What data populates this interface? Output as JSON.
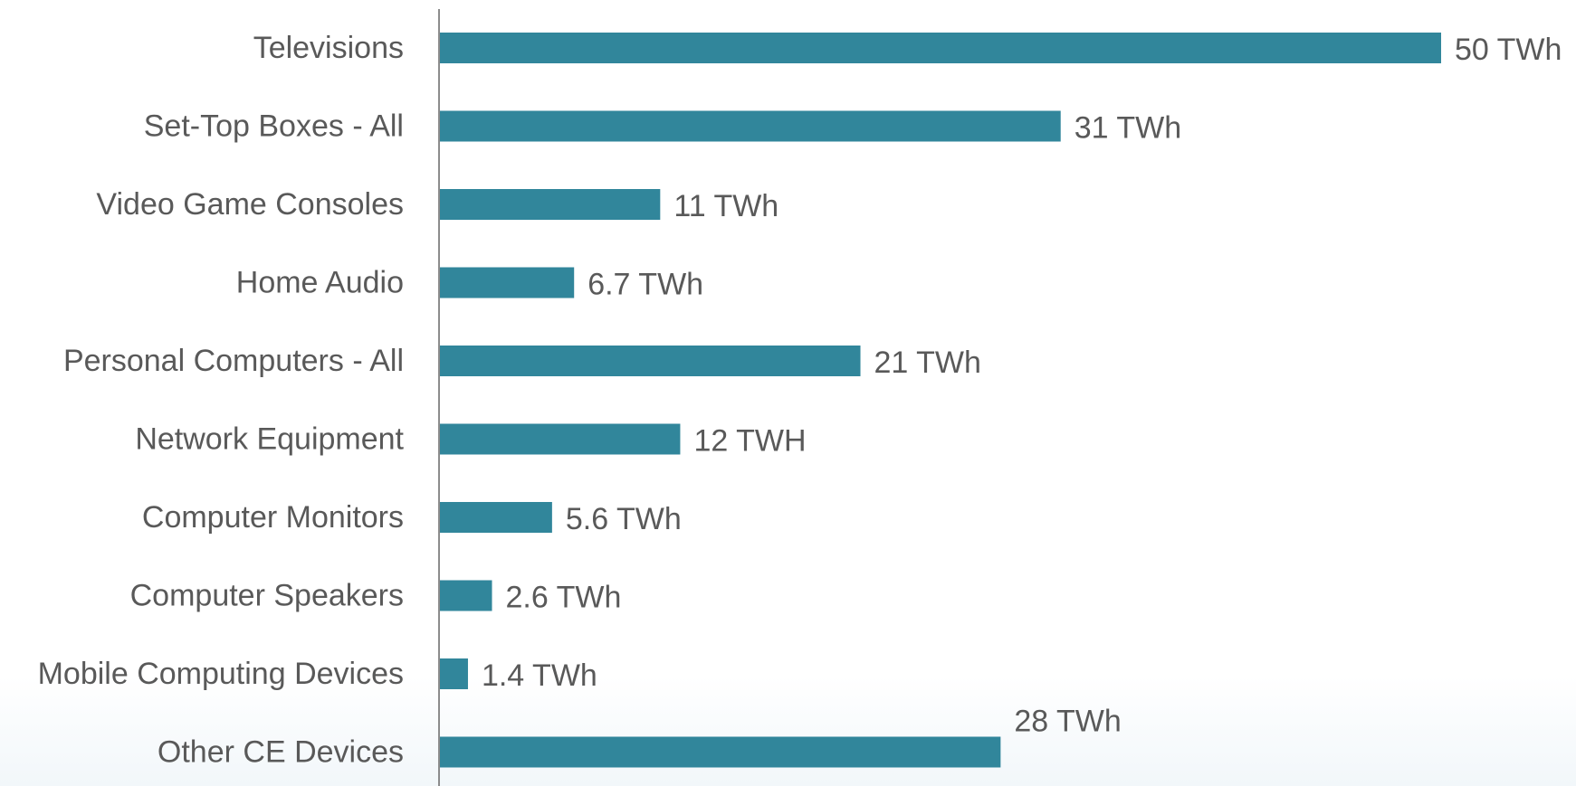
{
  "chart_data": {
    "type": "bar",
    "orientation": "horizontal",
    "title": "",
    "xlabel": "",
    "ylabel": "",
    "categories": [
      "Televisions",
      "Set-Top Boxes - All",
      "Video Game Consoles",
      "Home Audio",
      "Personal Computers - All",
      "Network Equipment",
      "Computer Monitors",
      "Computer Speakers",
      "Mobile Computing Devices",
      "Other CE Devices"
    ],
    "values": [
      50,
      31,
      11,
      6.7,
      21,
      12,
      5.6,
      2.6,
      1.4,
      28
    ],
    "value_labels": [
      "50 TWh",
      "31 TWh",
      "11 TWh",
      "6.7 TWh",
      "21 TWh",
      "12 TWH",
      "5.6 TWh",
      "2.6 TWh",
      "1.4 TWh",
      "28 TWh"
    ],
    "xlim": [
      0,
      50
    ],
    "grid": false,
    "legend": "none",
    "bar_color": "#31869b",
    "axis_color": "#8c8c8c",
    "label_color": "#595959"
  }
}
